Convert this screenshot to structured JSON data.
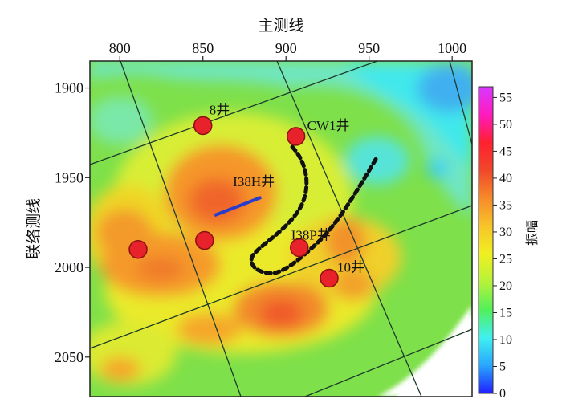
{
  "map": {
    "x_title": "主测线",
    "y_title": "联络测线",
    "x_ticks": [
      800,
      850,
      900,
      950,
      1000
    ],
    "y_ticks": [
      1900,
      1950,
      2000,
      2050
    ],
    "x_range": [
      782,
      1012
    ],
    "y_range": [
      1885,
      2072
    ]
  },
  "colorbar": {
    "title": "振幅",
    "ticks": [
      0,
      5,
      10,
      15,
      20,
      25,
      30,
      35,
      40,
      45,
      50,
      55
    ],
    "range": [
      0,
      57
    ],
    "colors": [
      "#2020ff",
      "#29a6ff",
      "#3ff0f0",
      "#52f05a",
      "#b6f23a",
      "#f0f020",
      "#f7c42a",
      "#f78a2a",
      "#f0482a",
      "#ff2030",
      "#ff1bc0",
      "#d838ff"
    ]
  },
  "wells": [
    {
      "label": "8井",
      "inline": 850,
      "xline": 1921
    },
    {
      "label": "CW1井",
      "inline": 906,
      "xline": 1927
    },
    {
      "label": "",
      "inline": 811,
      "xline": 1990
    },
    {
      "label": "",
      "inline": 851,
      "xline": 1985
    },
    {
      "label": "I38P井",
      "inline": 908,
      "xline": 1989
    },
    {
      "label": "10井",
      "inline": 926,
      "xline": 2006
    }
  ],
  "horizontal_well": {
    "label": "I38H井",
    "from": [
      857,
      1971
    ],
    "to": [
      885,
      1961
    ]
  },
  "colors": {
    "well_fill": "#e8222a",
    "well_stroke": "#8a1010",
    "horizontal_well": "#2a3ccc",
    "outline": "#111111"
  }
}
